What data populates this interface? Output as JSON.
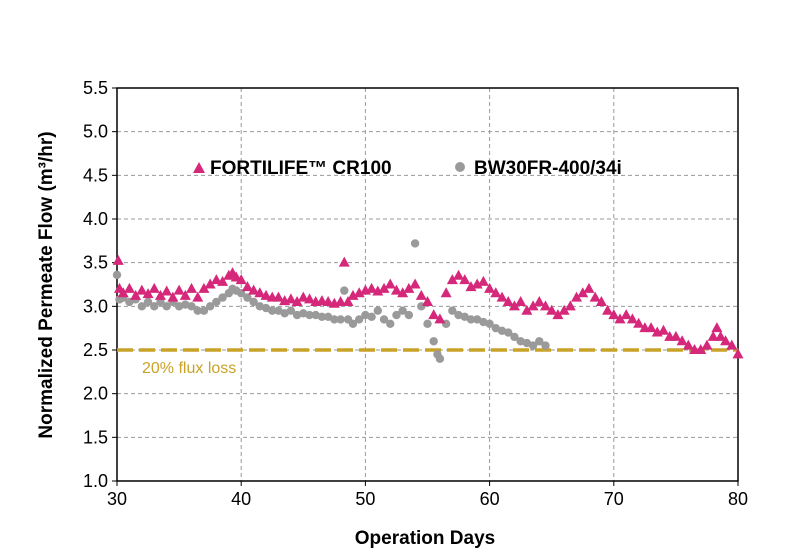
{
  "chart_data": {
    "type": "scatter",
    "title": "",
    "xlabel": "Operation Days",
    "ylabel": "Normalized Permeate Flow (m³/hr)",
    "xlim": [
      30,
      80
    ],
    "ylim": [
      1.0,
      5.5
    ],
    "xticks": [
      "30",
      "40",
      "50",
      "60",
      "70",
      "80"
    ],
    "yticks": [
      "1.0",
      "1.5",
      "2.0",
      "2.5",
      "3.0",
      "3.5",
      "4.0",
      "4.5",
      "5.0",
      "5.5"
    ],
    "grid": true,
    "legend_position": "top",
    "colors": {
      "FORTILIFE™ CR100": "#d6287a",
      "BW30FR-400/34i": "#9a9a9a",
      "reference": "#c9a227"
    },
    "series": [
      {
        "name": "FORTILIFE™ CR100",
        "marker": "triangle",
        "points": [
          [
            30.1,
            3.52
          ],
          [
            30.2,
            3.2
          ],
          [
            30.5,
            3.15
          ],
          [
            31,
            3.2
          ],
          [
            31.5,
            3.12
          ],
          [
            32,
            3.18
          ],
          [
            32.5,
            3.14
          ],
          [
            33,
            3.2
          ],
          [
            33.5,
            3.12
          ],
          [
            34,
            3.17
          ],
          [
            34.5,
            3.1
          ],
          [
            35,
            3.18
          ],
          [
            35.5,
            3.12
          ],
          [
            36,
            3.2
          ],
          [
            36.5,
            3.1
          ],
          [
            37,
            3.2
          ],
          [
            37.5,
            3.25
          ],
          [
            38,
            3.3
          ],
          [
            38.5,
            3.28
          ],
          [
            39,
            3.35
          ],
          [
            39.3,
            3.38
          ],
          [
            39.6,
            3.33
          ],
          [
            40,
            3.3
          ],
          [
            40.5,
            3.22
          ],
          [
            41,
            3.18
          ],
          [
            41.5,
            3.15
          ],
          [
            42,
            3.12
          ],
          [
            42.5,
            3.1
          ],
          [
            43,
            3.1
          ],
          [
            43.5,
            3.06
          ],
          [
            44,
            3.08
          ],
          [
            44.5,
            3.05
          ],
          [
            45,
            3.1
          ],
          [
            45.5,
            3.08
          ],
          [
            46,
            3.05
          ],
          [
            46.5,
            3.06
          ],
          [
            47,
            3.05
          ],
          [
            47.5,
            3.03
          ],
          [
            48,
            3.05
          ],
          [
            48.3,
            3.5
          ],
          [
            48.6,
            3.05
          ],
          [
            49,
            3.12
          ],
          [
            49.5,
            3.15
          ],
          [
            50,
            3.18
          ],
          [
            50.5,
            3.2
          ],
          [
            51,
            3.17
          ],
          [
            51.5,
            3.2
          ],
          [
            52,
            3.25
          ],
          [
            52.5,
            3.18
          ],
          [
            53,
            3.15
          ],
          [
            53.5,
            3.2
          ],
          [
            54,
            3.25
          ],
          [
            54.5,
            3.12
          ],
          [
            55,
            3.05
          ],
          [
            55.5,
            2.9
          ],
          [
            56,
            2.85
          ],
          [
            56.5,
            3.15
          ],
          [
            57,
            3.3
          ],
          [
            57.5,
            3.35
          ],
          [
            58,
            3.3
          ],
          [
            58.5,
            3.22
          ],
          [
            59,
            3.25
          ],
          [
            59.5,
            3.28
          ],
          [
            60,
            3.2
          ],
          [
            60.5,
            3.15
          ],
          [
            61,
            3.1
          ],
          [
            61.5,
            3.05
          ],
          [
            62,
            3.0
          ],
          [
            62.5,
            3.05
          ],
          [
            63,
            2.95
          ],
          [
            63.5,
            3.0
          ],
          [
            64,
            3.05
          ],
          [
            64.5,
            3.0
          ],
          [
            65,
            2.95
          ],
          [
            65.5,
            2.9
          ],
          [
            66,
            2.95
          ],
          [
            66.5,
            3.0
          ],
          [
            67,
            3.1
          ],
          [
            67.5,
            3.15
          ],
          [
            68,
            3.2
          ],
          [
            68.5,
            3.1
          ],
          [
            69,
            3.05
          ],
          [
            69.5,
            2.95
          ],
          [
            70,
            2.9
          ],
          [
            70.5,
            2.85
          ],
          [
            71,
            2.9
          ],
          [
            71.5,
            2.85
          ],
          [
            72,
            2.8
          ],
          [
            72.5,
            2.75
          ],
          [
            73,
            2.75
          ],
          [
            73.5,
            2.7
          ],
          [
            74,
            2.72
          ],
          [
            74.5,
            2.65
          ],
          [
            75,
            2.65
          ],
          [
            75.5,
            2.6
          ],
          [
            76,
            2.55
          ],
          [
            76.5,
            2.5
          ],
          [
            77,
            2.5
          ],
          [
            77.5,
            2.55
          ],
          [
            78,
            2.65
          ],
          [
            78.3,
            2.75
          ],
          [
            78.6,
            2.65
          ],
          [
            79,
            2.6
          ],
          [
            79.5,
            2.55
          ],
          [
            80,
            2.45
          ]
        ]
      },
      {
        "name": "BW30FR-400/34i",
        "marker": "circle",
        "points": [
          [
            30,
            3.36
          ],
          [
            30.2,
            3.08
          ],
          [
            30.5,
            3.1
          ],
          [
            31,
            3.05
          ],
          [
            31.5,
            3.08
          ],
          [
            32,
            3.0
          ],
          [
            32.5,
            3.05
          ],
          [
            33,
            3.0
          ],
          [
            33.5,
            3.05
          ],
          [
            34,
            3.0
          ],
          [
            34.5,
            3.05
          ],
          [
            35,
            3.0
          ],
          [
            35.5,
            3.02
          ],
          [
            36,
            3.0
          ],
          [
            36.5,
            2.95
          ],
          [
            37,
            2.95
          ],
          [
            37.5,
            3.0
          ],
          [
            38,
            3.05
          ],
          [
            38.5,
            3.1
          ],
          [
            39,
            3.15
          ],
          [
            39.3,
            3.2
          ],
          [
            39.6,
            3.18
          ],
          [
            40,
            3.15
          ],
          [
            40.5,
            3.1
          ],
          [
            41,
            3.05
          ],
          [
            41.5,
            3.0
          ],
          [
            42,
            2.98
          ],
          [
            42.5,
            2.95
          ],
          [
            43,
            2.95
          ],
          [
            43.5,
            2.92
          ],
          [
            44,
            2.95
          ],
          [
            44.5,
            2.9
          ],
          [
            45,
            2.92
          ],
          [
            45.5,
            2.9
          ],
          [
            46,
            2.9
          ],
          [
            46.5,
            2.88
          ],
          [
            47,
            2.88
          ],
          [
            47.5,
            2.85
          ],
          [
            48,
            2.85
          ],
          [
            48.3,
            3.18
          ],
          [
            48.6,
            2.85
          ],
          [
            49,
            2.8
          ],
          [
            49.5,
            2.85
          ],
          [
            50,
            2.9
          ],
          [
            50.5,
            2.88
          ],
          [
            51,
            2.95
          ],
          [
            51.5,
            2.85
          ],
          [
            52,
            2.8
          ],
          [
            52.5,
            2.9
          ],
          [
            53,
            2.95
          ],
          [
            53.5,
            2.9
          ],
          [
            54,
            3.72
          ],
          [
            54.5,
            3.0
          ],
          [
            55,
            2.8
          ],
          [
            55.5,
            2.6
          ],
          [
            55.8,
            2.45
          ],
          [
            56,
            2.4
          ],
          [
            56.5,
            2.8
          ],
          [
            57,
            2.95
          ],
          [
            57.5,
            2.9
          ],
          [
            58,
            2.88
          ],
          [
            58.5,
            2.85
          ],
          [
            59,
            2.85
          ],
          [
            59.5,
            2.82
          ],
          [
            60,
            2.8
          ],
          [
            60.5,
            2.75
          ],
          [
            61,
            2.72
          ],
          [
            61.5,
            2.7
          ],
          [
            62,
            2.65
          ],
          [
            62.5,
            2.6
          ],
          [
            63,
            2.58
          ],
          [
            63.5,
            2.55
          ],
          [
            64,
            2.6
          ],
          [
            64.5,
            2.55
          ]
        ]
      },
      {
        "name": "20% flux loss",
        "style": "dashed-line",
        "x": [
          30,
          80
        ],
        "y": [
          2.5,
          2.5
        ]
      }
    ],
    "legend": [
      "FORTILIFE™ CR100",
      "BW30FR-400/34i"
    ],
    "annotation": "20% flux loss"
  }
}
